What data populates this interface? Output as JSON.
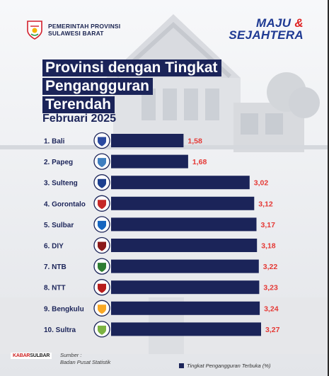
{
  "header": {
    "gov_line1": "PEMERINTAH PROVINSI",
    "gov_line2": "SULAWESI BARAT",
    "slogan_line1": "MAJU",
    "slogan_amp": "&",
    "slogan_line2": "SEJAHTERA"
  },
  "title_lines": [
    "Provinsi dengan Tingkat",
    "Pengangguran",
    "Terendah"
  ],
  "subtitle": "Februari 2025",
  "footer": {
    "logo_text_red": "KABAR",
    "logo_text_dark": "SULBAR",
    "source_line1": "Sumber :",
    "source_line2": "Badan Pusat Statistik",
    "legend_label": "Tingkat Pengangguran Terbuka (%)"
  },
  "colors": {
    "bar": "#1b2459",
    "value": "#e53935",
    "label": "#1b2459",
    "accent": "#1f3a93"
  },
  "chart_data": {
    "type": "bar",
    "orientation": "horizontal",
    "categories": [
      "1. Bali",
      "2. Papeg",
      "3. Sulteng",
      "4. Gorontalo",
      "5. Sulbar",
      "6. DIY",
      "7. NTB",
      "8. NTT",
      "9. Bengkulu",
      "10. Sultra"
    ],
    "value_labels": [
      "1,58",
      "1,68",
      "3,02",
      "3,12",
      "3,17",
      "3,18",
      "3,22",
      "3,23",
      "3,24",
      "3,27"
    ],
    "series": [
      {
        "name": "Tingkat Pengangguran Terbuka (%)",
        "values": [
          1.58,
          1.68,
          3.02,
          3.12,
          3.17,
          3.18,
          3.22,
          3.23,
          3.24,
          3.27
        ]
      }
    ],
    "title": "Provinsi dengan Tingkat Pengangguran Terendah",
    "subtitle": "Februari 2025",
    "legend": "bottom",
    "grid": false
  }
}
